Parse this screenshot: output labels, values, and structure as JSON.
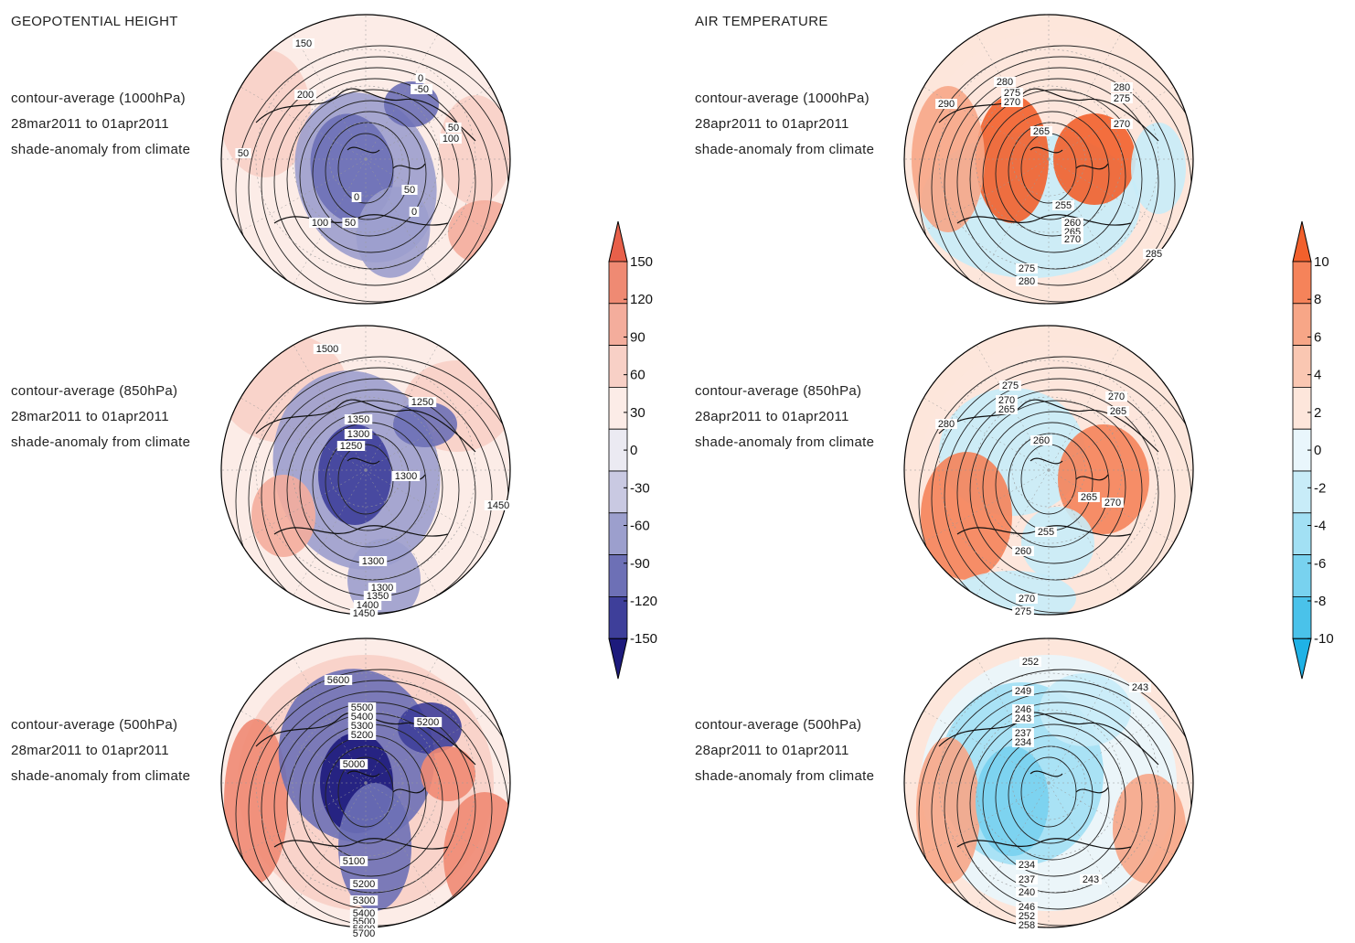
{
  "left": {
    "heading": "GEOPOTENTIAL HEIGHT",
    "panels": [
      {
        "lines": [
          "contour-average (1000hPa)",
          "28mar2011 to 01apr2011",
          "shade-anomaly from climate"
        ],
        "labels": [
          "150",
          "200",
          "50",
          "0",
          "-50",
          "50",
          "100",
          "0",
          "50",
          "0",
          "100",
          "50"
        ]
      },
      {
        "lines": [
          "contour-average (850hPa)",
          "28mar2011 to 01apr2011",
          "shade-anomaly from climate"
        ],
        "labels": [
          "1500",
          "1250",
          "1350",
          "1300",
          "1250",
          "1300",
          "1450",
          "1300",
          "1300",
          "1350",
          "1400",
          "1450"
        ]
      },
      {
        "lines": [
          "contour-average (500hPa)",
          "28mar2011 to 01apr2011",
          "shade-anomaly from climate"
        ],
        "labels": [
          "5600",
          "5500",
          "5400",
          "5300",
          "5200",
          "5200",
          "5000",
          "5100",
          "5200",
          "5300",
          "5400",
          "5500",
          "5600",
          "5700"
        ]
      }
    ],
    "colorbar": {
      "ticks": [
        "150",
        "120",
        "90",
        "60",
        "30",
        "0",
        "-30",
        "-60",
        "-90",
        "-120",
        "-150"
      ],
      "colors": [
        "#e8604a",
        "#ef8a73",
        "#f4ad9c",
        "#f8d0c6",
        "#fcece7",
        "#ebeaf2",
        "#c9c9e2",
        "#9c9fcd",
        "#6d70b6",
        "#3e3f9a",
        "#1d1a7c"
      ]
    }
  },
  "right": {
    "heading": "AIR TEMPERATURE",
    "panels": [
      {
        "lines": [
          "contour-average (1000hPa)",
          "28apr2011 to 01apr2011",
          "shade-anomaly from climate"
        ],
        "labels": [
          "290",
          "280",
          "275",
          "270",
          "280",
          "275",
          "270",
          "265",
          "255",
          "260",
          "265",
          "270",
          "285",
          "275",
          "280"
        ]
      },
      {
        "lines": [
          "contour-average (850hPa)",
          "28apr2011 to 01apr2011",
          "shade-anomaly from climate"
        ],
        "labels": [
          "275",
          "270",
          "265",
          "280",
          "270",
          "265",
          "260",
          "265",
          "270",
          "255",
          "260",
          "270",
          "275"
        ]
      },
      {
        "lines": [
          "contour-average (500hPa)",
          "28apr2011 to 01apr2011",
          "shade-anomaly from climate"
        ],
        "labels": [
          "252",
          "249",
          "246",
          "243",
          "237",
          "234",
          "243",
          "234",
          "237",
          "240",
          "243",
          "246",
          "252",
          "258"
        ]
      }
    ],
    "colorbar": {
      "ticks": [
        "10",
        "8",
        "6",
        "4",
        "2",
        "0",
        "-2",
        "-4",
        "-6",
        "-8",
        "-10"
      ],
      "colors": [
        "#f2602c",
        "#f5835a",
        "#f7a687",
        "#fac7b2",
        "#fde6db",
        "#e9f6fc",
        "#c8ecf8",
        "#a2e0f4",
        "#78d2ef",
        "#4ac2ea",
        "#1fb2e6"
      ]
    }
  },
  "chart_data": [
    {
      "type": "heatmap",
      "title": "GEOPOTENTIAL HEIGHT",
      "subtitle": "contour-average (1000hPa) / shade-anomaly from climate",
      "period": "28mar2011 to 01apr2011",
      "contour_levels": [
        -50,
        0,
        50,
        100,
        150,
        200
      ],
      "anomaly_range": [
        -150,
        150
      ],
      "projection": "north polar stereographic"
    },
    {
      "type": "heatmap",
      "title": "GEOPOTENTIAL HEIGHT",
      "subtitle": "contour-average (850hPa) / shade-anomaly from climate",
      "period": "28mar2011 to 01apr2011",
      "contour_levels": [
        1250,
        1300,
        1350,
        1400,
        1450,
        1500
      ],
      "anomaly_range": [
        -150,
        150
      ],
      "projection": "north polar stereographic"
    },
    {
      "type": "heatmap",
      "title": "GEOPOTENTIAL HEIGHT",
      "subtitle": "contour-average (500hPa) / shade-anomaly from climate",
      "period": "28mar2011 to 01apr2011",
      "contour_levels": [
        5000,
        5100,
        5200,
        5300,
        5400,
        5500,
        5600,
        5700
      ],
      "anomaly_range": [
        -150,
        150
      ],
      "projection": "north polar stereographic"
    },
    {
      "type": "heatmap",
      "title": "AIR TEMPERATURE",
      "subtitle": "contour-average (1000hPa) / shade-anomaly from climate",
      "period": "28apr2011 to 01apr2011",
      "contour_levels": [
        255,
        260,
        265,
        270,
        275,
        280,
        285,
        290
      ],
      "anomaly_range": [
        -10,
        10
      ],
      "projection": "north polar stereographic"
    },
    {
      "type": "heatmap",
      "title": "AIR TEMPERATURE",
      "subtitle": "contour-average (850hPa) / shade-anomaly from climate",
      "period": "28apr2011 to 01apr2011",
      "contour_levels": [
        255,
        260,
        265,
        270,
        275,
        280
      ],
      "anomaly_range": [
        -10,
        10
      ],
      "projection": "north polar stereographic"
    },
    {
      "type": "heatmap",
      "title": "AIR TEMPERATURE",
      "subtitle": "contour-average (500hPa) / shade-anomaly from climate",
      "period": "28apr2011 to 01apr2011",
      "contour_levels": [
        234,
        237,
        240,
        243,
        246,
        249,
        252,
        258
      ],
      "anomaly_range": [
        -10,
        10
      ],
      "projection": "north polar stereographic"
    }
  ]
}
